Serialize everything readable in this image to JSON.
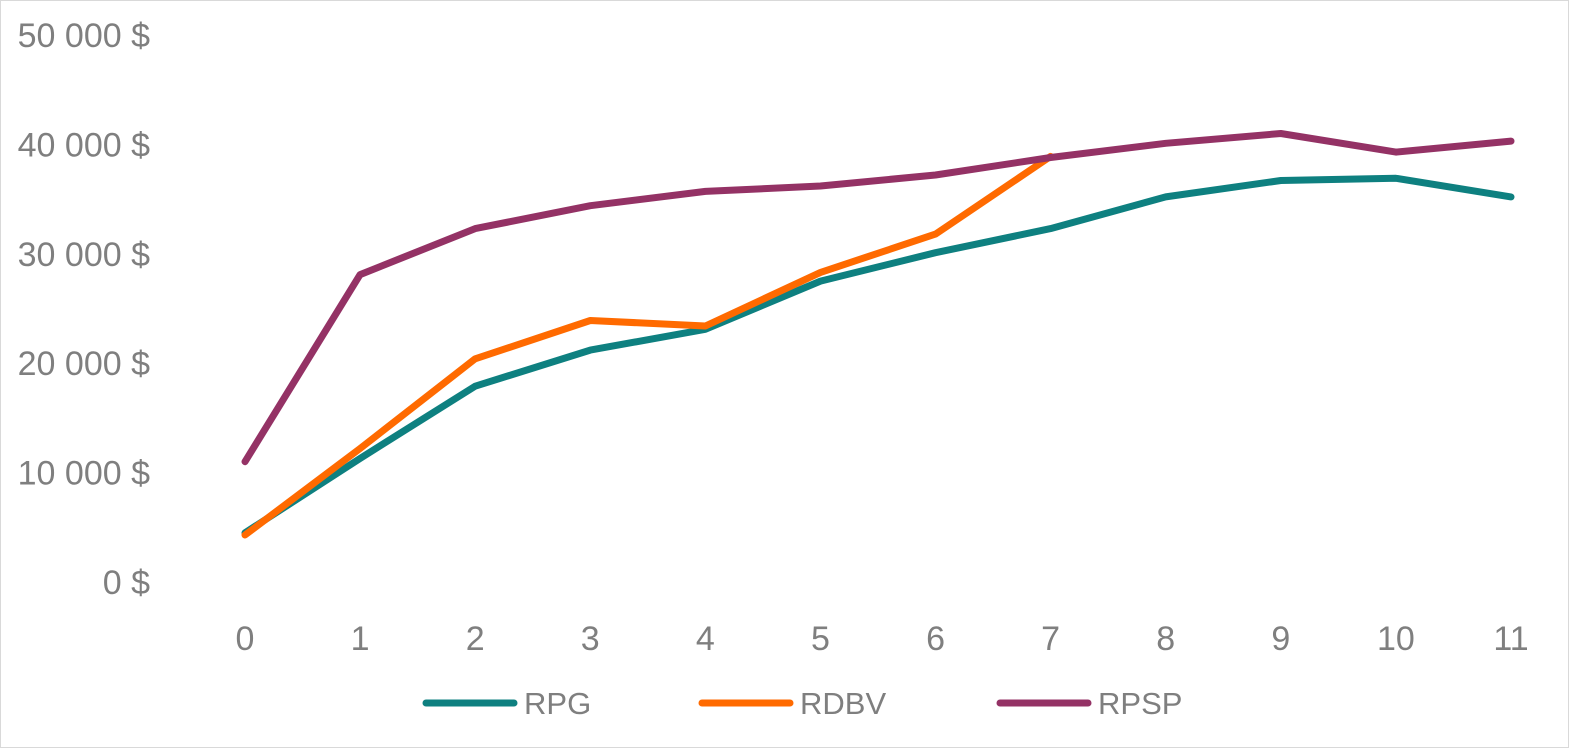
{
  "chart_data": {
    "type": "line",
    "title": "",
    "xlabel": "",
    "ylabel": "",
    "x": [
      0,
      1,
      2,
      3,
      4,
      5,
      6,
      7,
      8,
      9,
      10,
      11
    ],
    "x_tick_labels": [
      "0",
      "1",
      "2",
      "3",
      "4",
      "5",
      "6",
      "7",
      "8",
      "9",
      "10",
      "11"
    ],
    "y_tick_values": [
      0,
      10000,
      20000,
      30000,
      40000,
      50000
    ],
    "y_tick_labels": [
      "0 $",
      "10 000 $",
      "20 000 $",
      "30 000 $",
      "40 000 $",
      "50 000 $"
    ],
    "ylim": [
      0,
      50000
    ],
    "grid": false,
    "legend_position": "bottom",
    "series": [
      {
        "name": "RPG",
        "color": "#0e8080",
        "x": [
          0,
          1,
          2,
          3,
          4,
          5,
          6,
          7,
          8,
          9,
          10,
          11
        ],
        "values": [
          4500,
          11300,
          17900,
          21200,
          23100,
          27500,
          30100,
          32300,
          35200,
          36700,
          36900,
          35200
        ]
      },
      {
        "name": "RDBV",
        "color": "#ff6a00",
        "x": [
          0,
          1,
          2,
          3,
          4,
          5,
          6,
          7
        ],
        "values": [
          4300,
          12200,
          20400,
          23900,
          23400,
          28300,
          31800,
          38900
        ]
      },
      {
        "name": "RPSP",
        "color": "#943265",
        "x": [
          0,
          1,
          2,
          3,
          4,
          5,
          6,
          7,
          8,
          9,
          10,
          11
        ],
        "values": [
          11000,
          28100,
          32300,
          34400,
          35700,
          36200,
          37200,
          38800,
          40100,
          41000,
          39300,
          40300
        ]
      }
    ]
  }
}
